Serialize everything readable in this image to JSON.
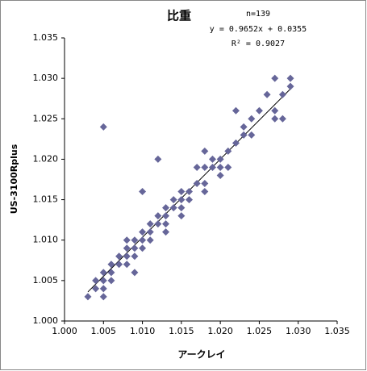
{
  "chart_data": {
    "type": "scatter",
    "title": "比重",
    "annotations": [
      "n=139",
      "y = 0.9652x + 0.0355",
      "R² = 0.9027"
    ],
    "x_label": "アークレイ",
    "y_label": "US-3100Rplus",
    "color": "#666699",
    "trendline": {
      "slope": 0.9652,
      "intercept": 0.0355
    },
    "x": [
      1.003,
      1.004,
      1.004,
      1.005,
      1.005,
      1.005,
      1.005,
      1.006,
      1.006,
      1.006,
      1.007,
      1.007,
      1.008,
      1.008,
      1.008,
      1.008,
      1.009,
      1.009,
      1.009,
      1.009,
      1.01,
      1.01,
      1.01,
      1.01,
      1.011,
      1.011,
      1.011,
      1.012,
      1.012,
      1.012,
      1.013,
      1.013,
      1.013,
      1.013,
      1.014,
      1.014,
      1.015,
      1.015,
      1.015,
      1.015,
      1.016,
      1.016,
      1.017,
      1.017,
      1.018,
      1.018,
      1.018,
      1.018,
      1.019,
      1.019,
      1.02,
      1.02,
      1.02,
      1.021,
      1.021,
      1.022,
      1.022,
      1.023,
      1.023,
      1.024,
      1.024,
      1.025,
      1.026,
      1.027,
      1.027,
      1.027,
      1.028,
      1.028,
      1.029,
      1.029,
      1.005
    ],
    "y": [
      1.003,
      1.004,
      1.005,
      1.006,
      1.005,
      1.004,
      1.003,
      1.005,
      1.006,
      1.007,
      1.007,
      1.008,
      1.008,
      1.007,
      1.009,
      1.01,
      1.01,
      1.009,
      1.008,
      1.006,
      1.009,
      1.01,
      1.011,
      1.016,
      1.01,
      1.011,
      1.012,
      1.012,
      1.013,
      1.02,
      1.011,
      1.012,
      1.013,
      1.014,
      1.014,
      1.015,
      1.015,
      1.014,
      1.013,
      1.016,
      1.015,
      1.016,
      1.017,
      1.019,
      1.016,
      1.017,
      1.019,
      1.021,
      1.019,
      1.02,
      1.018,
      1.019,
      1.02,
      1.019,
      1.021,
      1.022,
      1.026,
      1.023,
      1.024,
      1.023,
      1.025,
      1.026,
      1.028,
      1.025,
      1.026,
      1.03,
      1.025,
      1.028,
      1.03,
      1.029,
      1.024
    ],
    "xlim": [
      1.0,
      1.035
    ],
    "ylim": [
      1.0,
      1.035
    ],
    "xticks": [
      {
        "value": 1.0,
        "label": "1.000"
      },
      {
        "value": 1.005,
        "label": "1.005"
      },
      {
        "value": 1.01,
        "label": "1.010"
      },
      {
        "value": 1.015,
        "label": "1.015"
      },
      {
        "value": 1.02,
        "label": "1.020"
      },
      {
        "value": 1.025,
        "label": "1.025"
      },
      {
        "value": 1.03,
        "label": "1.030"
      },
      {
        "value": 1.035,
        "label": "1.035"
      }
    ],
    "yticks": [
      {
        "value": 1.0,
        "label": "1.000"
      },
      {
        "value": 1.005,
        "label": "1.005"
      },
      {
        "value": 1.01,
        "label": "1.010"
      },
      {
        "value": 1.015,
        "label": "1.015"
      },
      {
        "value": 1.02,
        "label": "1.020"
      },
      {
        "value": 1.025,
        "label": "1.025"
      },
      {
        "value": 1.03,
        "label": "1.030"
      },
      {
        "value": 1.035,
        "label": "1.035"
      }
    ]
  }
}
